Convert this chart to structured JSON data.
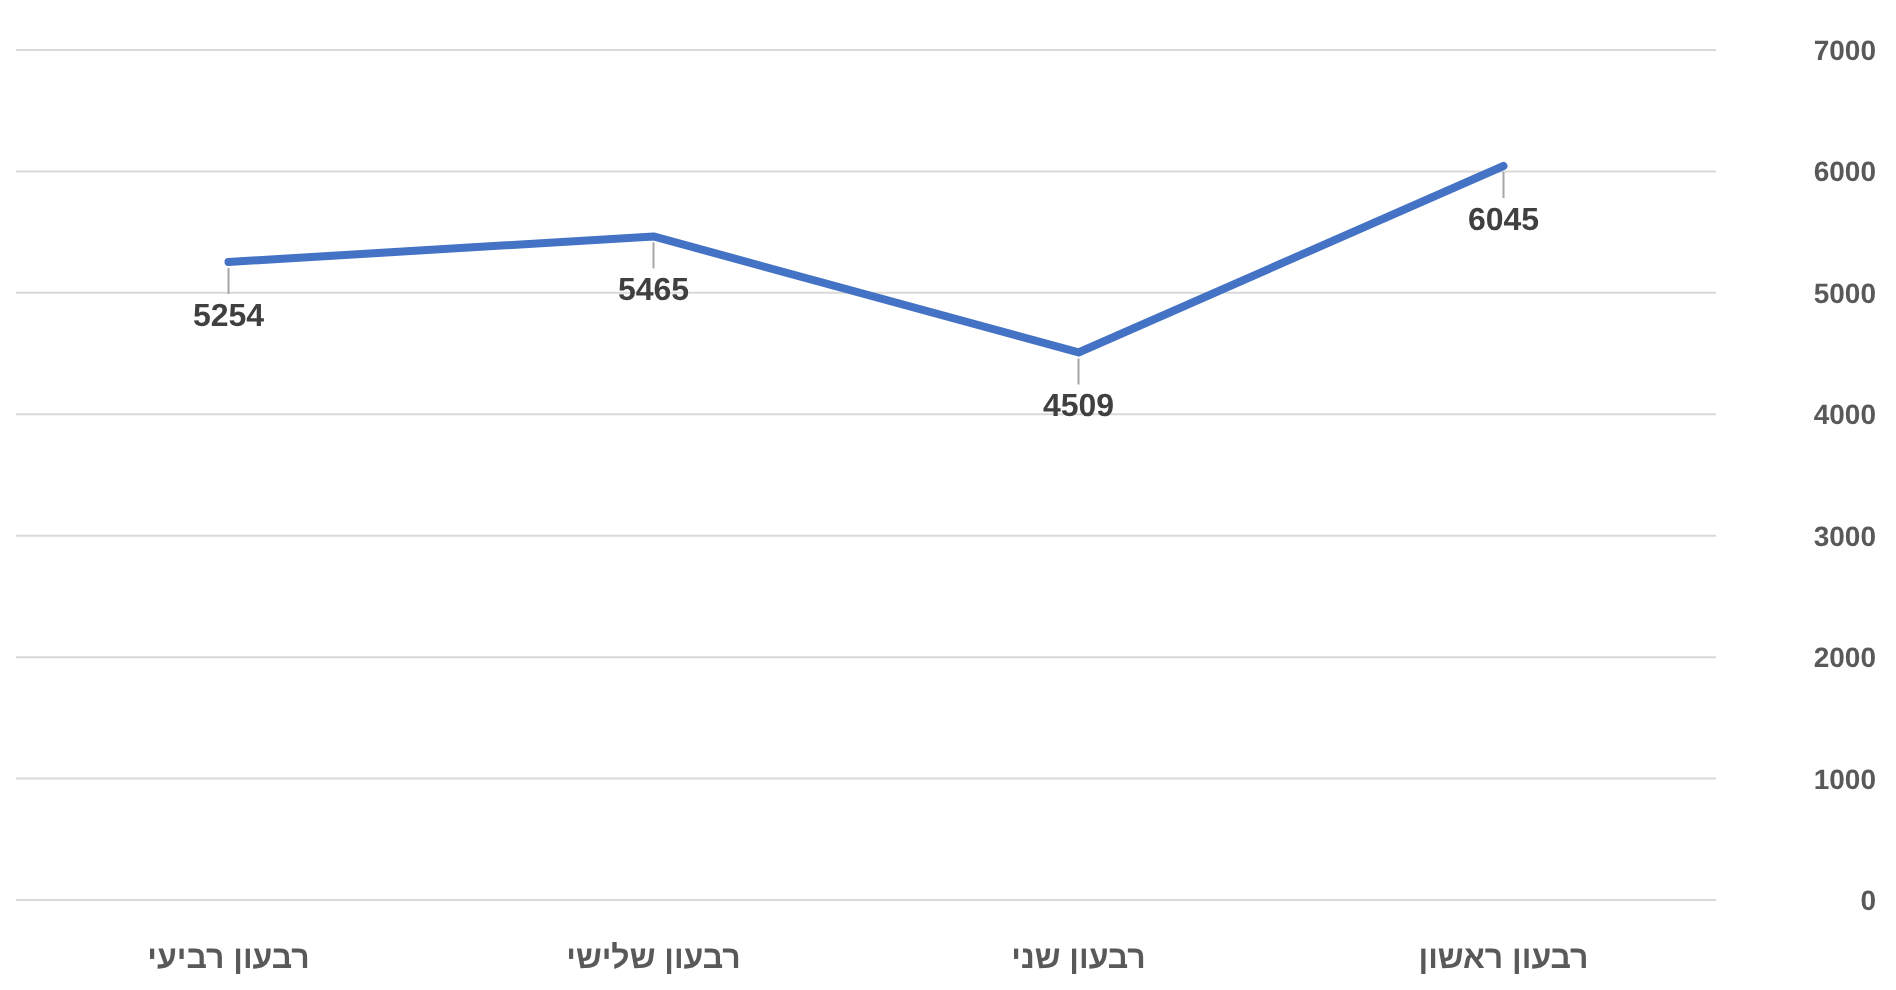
{
  "chart_data": {
    "type": "line",
    "categories": [
      "רבעון רביעי",
      "רבעון שלישי",
      "רבעון שני",
      "רבעון ראשון"
    ],
    "values": [
      5254,
      5465,
      4509,
      6045
    ],
    "value_labels": [
      "5254",
      "5465",
      "4509",
      "6045"
    ],
    "color": "#4472c4",
    "ylim": [
      0,
      7000
    ],
    "yticks": [
      0,
      1000,
      2000,
      3000,
      4000,
      5000,
      6000,
      7000
    ],
    "grid": "y",
    "line_style": "solid"
  }
}
